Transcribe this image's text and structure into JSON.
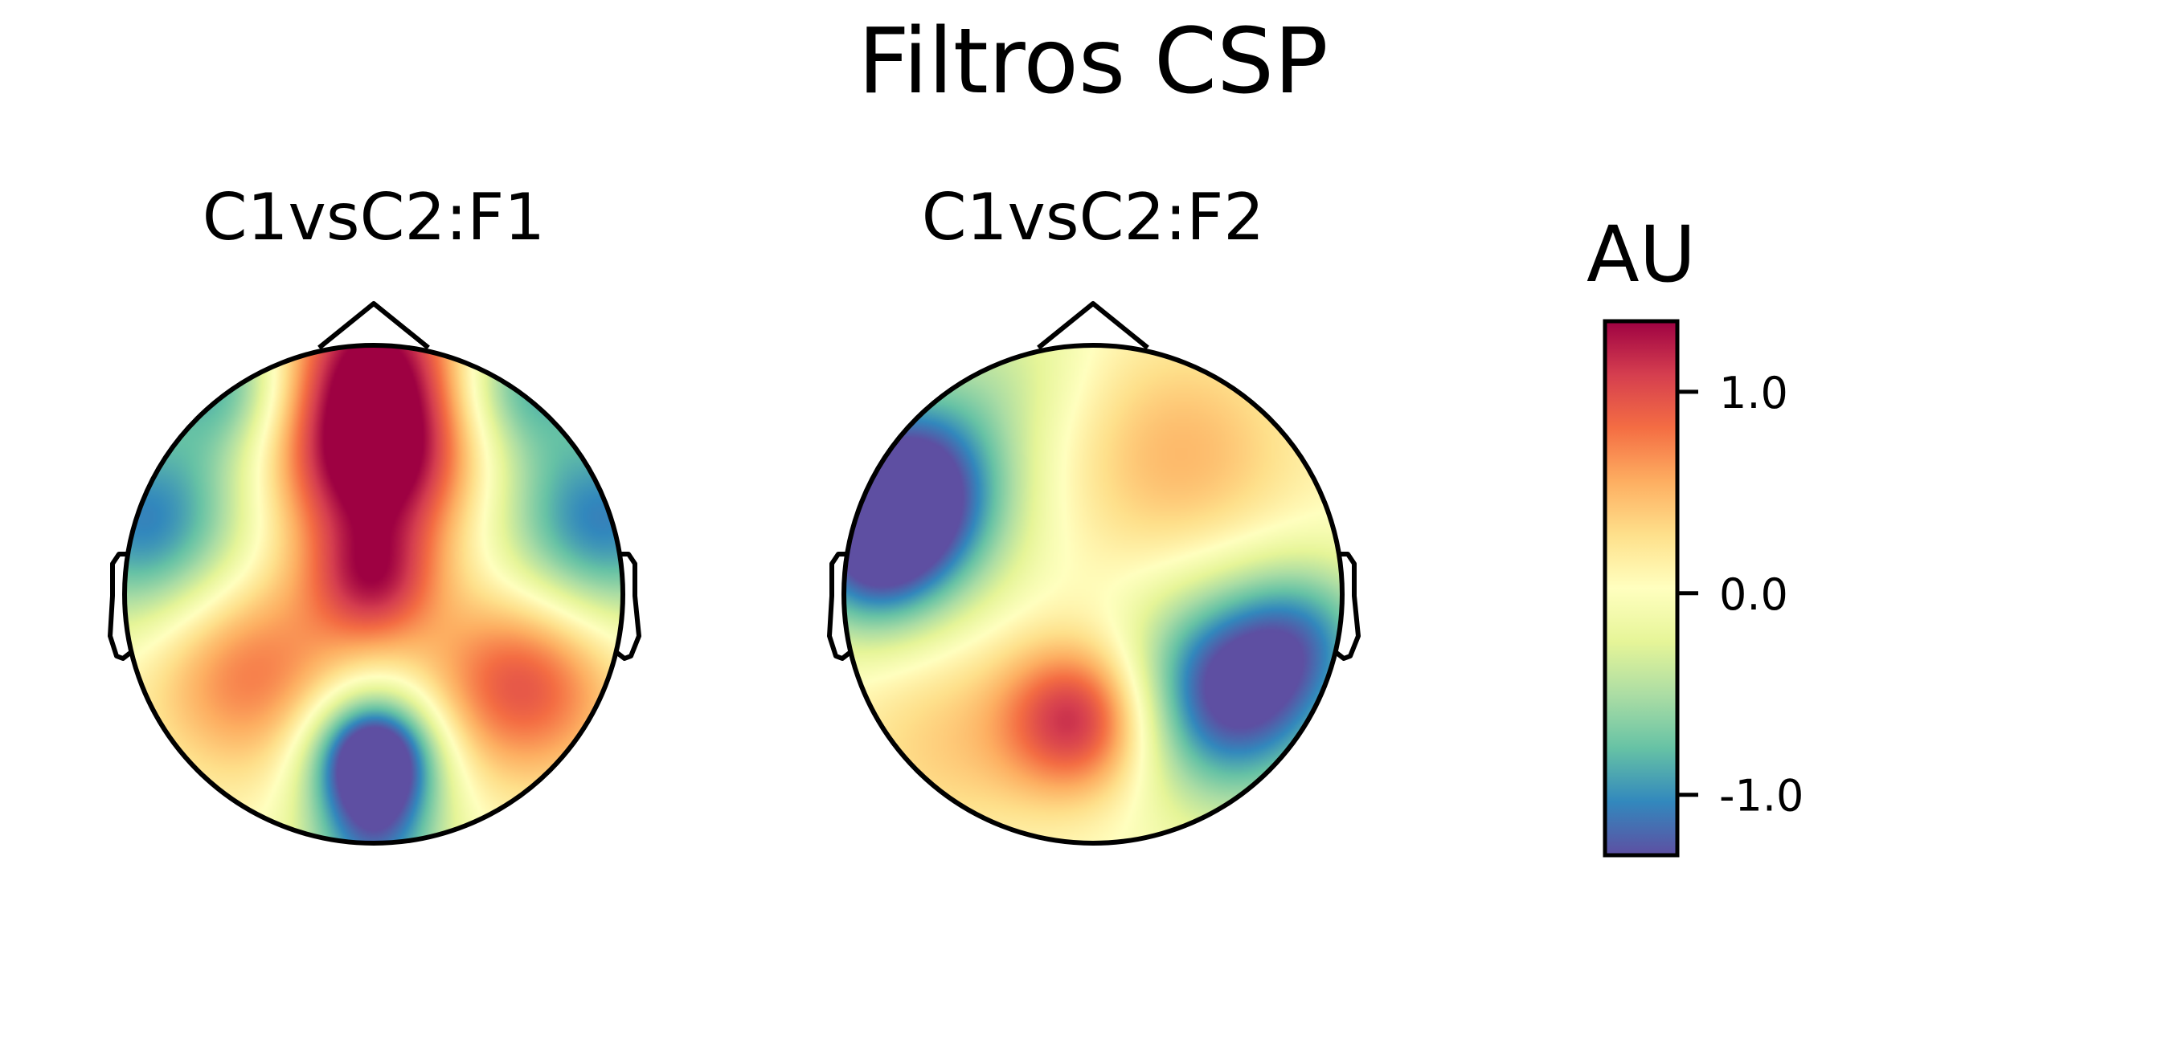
{
  "chart_data": {
    "type": "heatmap",
    "title": "Filtros CSP",
    "colormap": "Spectral_r",
    "colors": [
      "#5e4fa2",
      "#3288bd",
      "#66c2a5",
      "#abdda4",
      "#e6f598",
      "#ffffbf",
      "#fee08b",
      "#fdae61",
      "#f46d43",
      "#d53e4f",
      "#9e0142"
    ],
    "vmin": -1.3,
    "vmax": 1.35,
    "maps": [
      {
        "title": "C1vsC2:F1",
        "sources": [
          {
            "x": 0.0,
            "y": 0.55,
            "w": 1.6,
            "s": 0.28
          },
          {
            "x": 0.0,
            "y": 1.0,
            "w": 1.0,
            "s": 0.25
          },
          {
            "x": -0.9,
            "y": 0.28,
            "w": -1.1,
            "s": 0.3
          },
          {
            "x": 0.9,
            "y": 0.28,
            "w": -1.1,
            "s": 0.3
          },
          {
            "x": -0.5,
            "y": -0.3,
            "w": 0.8,
            "s": 0.3
          },
          {
            "x": 0.6,
            "y": -0.35,
            "w": 1.0,
            "s": 0.28
          },
          {
            "x": 0.0,
            "y": -0.65,
            "w": -1.8,
            "s": 0.18
          },
          {
            "x": 0.0,
            "y": -1.0,
            "w": -0.9,
            "s": 0.2
          },
          {
            "x": 0.0,
            "y": 0.05,
            "w": 0.9,
            "s": 0.18
          },
          {
            "x": -0.6,
            "y": 0.85,
            "w": -0.8,
            "s": 0.2
          },
          {
            "x": 0.6,
            "y": 0.85,
            "w": -0.8,
            "s": 0.2
          }
        ]
      },
      {
        "title": "C1vsC2:F2",
        "sources": [
          {
            "x": -0.75,
            "y": 0.4,
            "w": -1.7,
            "s": 0.28
          },
          {
            "x": -0.9,
            "y": 0.1,
            "w": -0.7,
            "s": 0.22
          },
          {
            "x": 0.55,
            "y": -0.4,
            "w": -1.4,
            "s": 0.3
          },
          {
            "x": 0.85,
            "y": -0.15,
            "w": -0.6,
            "s": 0.22
          },
          {
            "x": -0.05,
            "y": -0.5,
            "w": 1.2,
            "s": 0.22
          },
          {
            "x": 0.35,
            "y": 0.55,
            "w": 0.5,
            "s": 0.35
          },
          {
            "x": -0.6,
            "y": -0.6,
            "w": 0.35,
            "s": 0.3
          },
          {
            "x": -0.35,
            "y": 0.9,
            "w": -0.3,
            "s": 0.25
          }
        ]
      }
    ],
    "colorbar": {
      "label": "AU",
      "ticks": [
        1.0,
        0.0,
        -1.0
      ],
      "tick_labels": [
        "1.0",
        "0.0",
        "-1.0"
      ]
    }
  }
}
